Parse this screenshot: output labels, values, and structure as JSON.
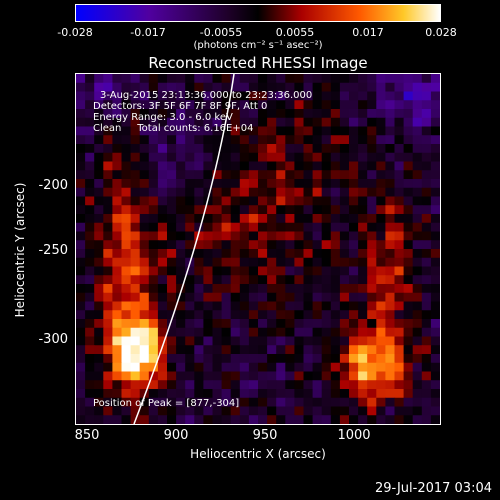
{
  "colorbar": {
    "ticks": [
      "-0.028",
      "-0.017",
      "-0.0055",
      "0.0055",
      "0.017",
      "0.028"
    ],
    "units": "(photons cm⁻² s⁻¹ asec⁻²)"
  },
  "title": "Reconstructed RHESSI Image",
  "info": {
    "line1": "3-Aug-2015 23:13:36.000 to 23:23:36.000",
    "line2": "Detectors: 3F 5F 6F 7F 8F 9F, Att 0",
    "line3": "Energy Range: 3.0 - 6.0 keV",
    "line4": "Clean     Total counts: 6.16E+04",
    "peak": "Position of Peak = [877,-304]"
  },
  "axes": {
    "xlabel": "Heliocentric X (arcsec)",
    "ylabel": "Heliocentric Y (arcsec)",
    "xticks": [
      "850",
      "900",
      "950",
      "1000"
    ],
    "yticks": [
      "-200",
      "-250",
      "-300"
    ]
  },
  "footer": "29-Jul-2017 03:04",
  "colors": {
    "background": "#000000",
    "text": "#ffffff"
  }
}
